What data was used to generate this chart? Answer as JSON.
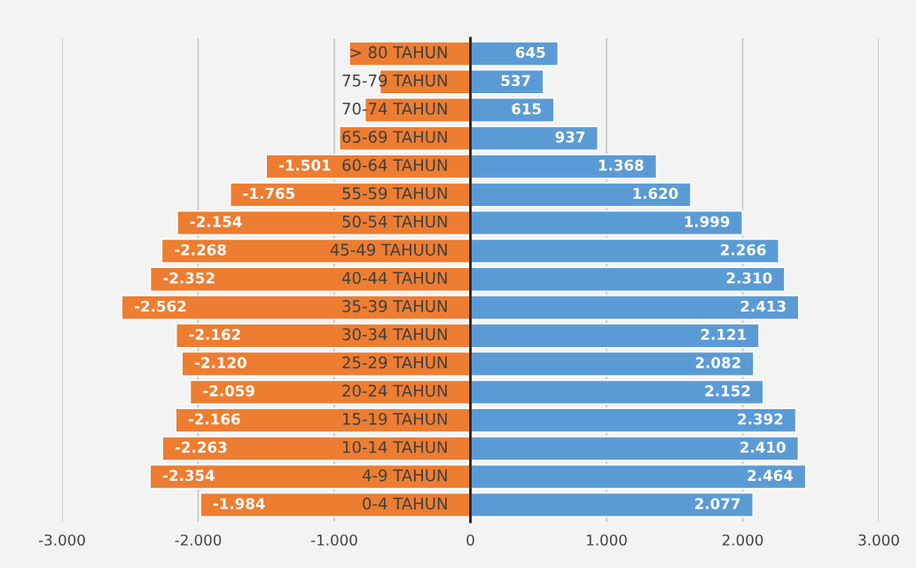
{
  "chart_data": {
    "type": "bar",
    "orientation": "horizontal",
    "stacked": true,
    "categories": [
      "> 80 TAHUN",
      "75-79 TAHUN",
      "70-74 TAHUN",
      "65-69 TAHUN",
      "60-64 TAHUN",
      "55-59 TAHUN",
      "50-54 TAHUN",
      "45-49 TAHUUN",
      "40-44 TAHUN",
      "35-39 TAHUN",
      "30-34 TAHUN",
      "25-29 TAHUN",
      "20-24 TAHUN",
      "15-19 TAHUN",
      "10-14 TAHUN",
      "4-9 TAHUN",
      "0-4 TAHUN"
    ],
    "series": [
      {
        "color": "#ed7d31",
        "values": [
          -890,
          -665,
          -775,
          -963,
          -1501,
          -1765,
          -2154,
          -2268,
          -2352,
          -2562,
          -2162,
          -2120,
          -2059,
          -2166,
          -2263,
          -2354,
          -1984
        ],
        "value_labels": [
          null,
          null,
          null,
          null,
          "-1.501",
          "-1.765",
          "-2.154",
          "-2.268",
          "-2.352",
          "-2.562",
          "-2.162",
          "-2.120",
          "-2.059",
          "-2.166",
          "-2.263",
          "-2.354",
          "-1.984"
        ]
      },
      {
        "color": "#5b9bd5",
        "values": [
          645,
          537,
          615,
          937,
          1368,
          1620,
          1999,
          2266,
          2310,
          2413,
          2121,
          2082,
          2152,
          2392,
          2410,
          2464,
          2077
        ],
        "value_labels": [
          "645",
          "537",
          "615",
          "937",
          "1.368",
          "1.620",
          "1.999",
          "2.266",
          "2.310",
          "2.413",
          "2.121",
          "2.082",
          "2.152",
          "2.392",
          "2.410",
          "2.464",
          "2.077"
        ]
      }
    ],
    "xlim": [
      -3000,
      3000
    ],
    "xticks": [
      {
        "value": -3000,
        "label": "-3.000"
      },
      {
        "value": -2000,
        "label": "-2.000"
      },
      {
        "value": -1000,
        "label": "-1.000"
      },
      0,
      {
        "value": 1000,
        "label": "1.000"
      },
      {
        "value": 2000,
        "label": "2.000"
      },
      {
        "value": 3000,
        "label": "3.000"
      }
    ],
    "grid": "x"
  }
}
